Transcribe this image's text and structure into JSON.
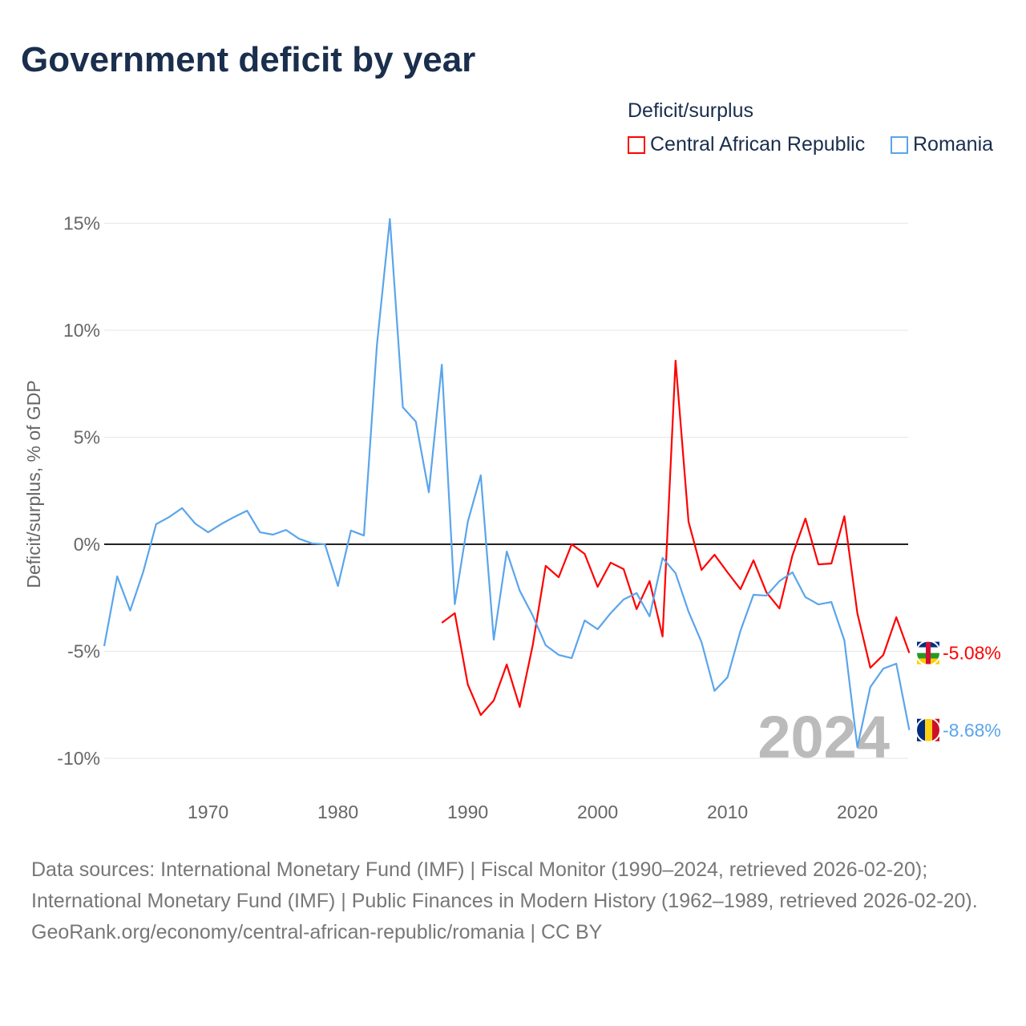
{
  "title": "Government deficit by year",
  "chart_data": {
    "type": "line",
    "title": "Government deficit by year",
    "ylabel": "Deficit/surplus, % of GDP",
    "xlabel": "",
    "legend_title": "Deficit/surplus",
    "legend_position": "top-right",
    "ylim": [
      -10,
      15
    ],
    "xlim": [
      1962,
      2024
    ],
    "yticks": [
      15,
      10,
      5,
      0,
      -5,
      -10
    ],
    "ytick_labels": [
      "15%",
      "10%",
      "5%",
      "0%",
      "-5%",
      "-10%"
    ],
    "xticks": [
      1970,
      1980,
      1990,
      2000,
      2010,
      2020
    ],
    "xtick_labels": [
      "1970",
      "1980",
      "1990",
      "2000",
      "2010",
      "2020"
    ],
    "year_watermark": "2024",
    "series": [
      {
        "name": "Central African Republic",
        "color": "#ff0000",
        "end_label": "-5.08%",
        "start": 1988,
        "values": [
          -3.67,
          -3.22,
          -6.55,
          -7.98,
          -7.3,
          -5.62,
          -7.6,
          -4.72,
          -1.01,
          -1.54,
          0,
          -0.45,
          -1.99,
          -0.86,
          -1.16,
          -3.03,
          -1.72,
          -4.31,
          8.58,
          1.05,
          -1.2,
          -0.49,
          -1.31,
          -2.1,
          -0.75,
          -2.25,
          -3.0,
          -0.52,
          1.2,
          -0.94,
          -0.9,
          1.31,
          -3.22,
          -5.77,
          -5.17,
          -3.41,
          -5.08
        ]
      },
      {
        "name": "Romania",
        "color": "#5aa5ec",
        "end_label": "-8.68%",
        "start": 1962,
        "values": [
          -4.76,
          -1.5,
          -3.1,
          -1.3,
          0.94,
          1.27,
          1.69,
          0.97,
          0.56,
          0.94,
          1.27,
          1.57,
          0.56,
          0.45,
          0.67,
          0.26,
          0.04,
          0,
          -1.95,
          0.64,
          0.41,
          9.3,
          15.2,
          6.4,
          5.73,
          2.43,
          8.39,
          -2.8,
          1.05,
          3.22,
          -4.46,
          -0.34,
          -2.17,
          -3.33,
          -4.72,
          -5.17,
          -5.32,
          -3.56,
          -3.97,
          -3.22,
          -2.58,
          -2.28,
          -3.37,
          -0.64,
          -1.35,
          -3.15,
          -4.57,
          -6.85,
          -6.22,
          -4.04,
          -2.36,
          -2.4,
          -1.72,
          -1.31,
          -2.47,
          -2.81,
          -2.7,
          -4.49,
          -9.48,
          -6.67,
          -5.81,
          -5.58,
          -8.68
        ]
      }
    ]
  },
  "sources": {
    "line1": "Data sources: International Monetary Fund (IMF) | Fiscal Monitor (1990–2024, retrieved 2026-02-20); International Monetary Fund (IMF) | Public Finances in Modern History (1962–1989, retrieved 2026-02-20).",
    "line2": "GeoRank.org/economy/central-african-republic/romania | CC BY"
  }
}
